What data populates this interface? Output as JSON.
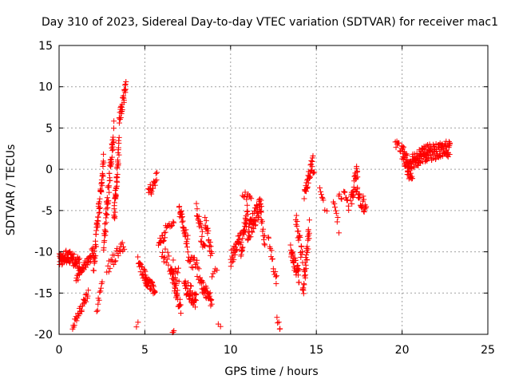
{
  "chart_data": {
    "type": "scatter",
    "title": "Day 310 of 2023, Sidereal Day-to-day VTEC variation (SDTVAR) for receiver mac1",
    "xlabel": "GPS time / hours",
    "ylabel": "SDTVAR / TECUs",
    "xlim": [
      0,
      25
    ],
    "ylim": [
      -20,
      15
    ],
    "xticks": [
      "0",
      "5",
      "10",
      "15",
      "20",
      "25"
    ],
    "yticks": [
      "-20",
      "-15",
      "-10",
      "-5",
      "0",
      "5",
      "10",
      "15"
    ],
    "grid": true,
    "marker": "+",
    "color": "#ff0000",
    "segments": [
      {
        "x0": 0.0,
        "x1": 0.5,
        "y0": -11.0,
        "y1": -10.5,
        "spread": 1.5,
        "n": 40
      },
      {
        "x0": 0.5,
        "x1": 1.2,
        "y0": -10.5,
        "y1": -11.5,
        "spread": 1.5,
        "n": 40
      },
      {
        "x0": 0.8,
        "x1": 1.7,
        "y0": -19.0,
        "y1": -15.0,
        "spread": 1.0,
        "n": 30
      },
      {
        "x0": 1.0,
        "x1": 2.0,
        "y0": -13.0,
        "y1": -10.0,
        "spread": 1.5,
        "n": 40
      },
      {
        "x0": 2.0,
        "x1": 2.6,
        "y0": -12.0,
        "y1": 1.0,
        "spread": 2.5,
        "n": 60
      },
      {
        "x0": 2.2,
        "x1": 2.5,
        "y0": -17.0,
        "y1": -14.0,
        "spread": 1.0,
        "n": 10
      },
      {
        "x0": 2.6,
        "x1": 3.2,
        "y0": -9.0,
        "y1": 5.0,
        "spread": 2.5,
        "n": 60
      },
      {
        "x0": 3.2,
        "x1": 3.5,
        "y0": -6.0,
        "y1": 3.0,
        "spread": 2.5,
        "n": 40
      },
      {
        "x0": 3.5,
        "x1": 3.9,
        "y0": 6.0,
        "y1": 10.0,
        "spread": 1.5,
        "n": 30
      },
      {
        "x0": 2.8,
        "x1": 3.8,
        "y0": -12.0,
        "y1": -9.0,
        "spread": 1.5,
        "n": 25
      },
      {
        "x0": 4.5,
        "x1": 4.6,
        "y0": -19.0,
        "y1": -18.5,
        "spread": 0.3,
        "n": 2
      },
      {
        "x0": 4.6,
        "x1": 5.2,
        "y0": -11.0,
        "y1": -14.0,
        "spread": 1.5,
        "n": 25
      },
      {
        "x0": 5.0,
        "x1": 5.6,
        "y0": -13.0,
        "y1": -15.0,
        "spread": 1.5,
        "n": 30
      },
      {
        "x0": 5.2,
        "x1": 5.7,
        "y0": -3.0,
        "y1": -1.0,
        "spread": 1.5,
        "n": 20
      },
      {
        "x0": 5.8,
        "x1": 6.2,
        "y0": -9.0,
        "y1": -8.0,
        "spread": 1.0,
        "n": 15
      },
      {
        "x0": 6.2,
        "x1": 6.7,
        "y0": -7.0,
        "y1": -6.5,
        "spread": 0.5,
        "n": 10
      },
      {
        "x0": 6.0,
        "x1": 7.0,
        "y0": -10.0,
        "y1": -13.0,
        "spread": 2.0,
        "n": 25
      },
      {
        "x0": 6.5,
        "x1": 7.1,
        "y0": -12.0,
        "y1": -17.0,
        "spread": 2.0,
        "n": 35
      },
      {
        "x0": 6.6,
        "x1": 6.7,
        "y0": -19.8,
        "y1": -19.5,
        "spread": 0.3,
        "n": 3
      },
      {
        "x0": 7.0,
        "x1": 7.5,
        "y0": -5.0,
        "y1": -9.0,
        "spread": 2.0,
        "n": 30
      },
      {
        "x0": 7.3,
        "x1": 8.0,
        "y0": -14.0,
        "y1": -16.0,
        "spread": 2.0,
        "n": 40
      },
      {
        "x0": 7.5,
        "x1": 8.3,
        "y0": -10.0,
        "y1": -13.0,
        "spread": 2.0,
        "n": 25
      },
      {
        "x0": 8.0,
        "x1": 8.5,
        "y0": -5.0,
        "y1": -10.0,
        "spread": 2.0,
        "n": 25
      },
      {
        "x0": 8.3,
        "x1": 8.9,
        "y0": -14.0,
        "y1": -16.0,
        "spread": 1.5,
        "n": 30
      },
      {
        "x0": 8.5,
        "x1": 8.9,
        "y0": -6.0,
        "y1": -10.5,
        "spread": 1.5,
        "n": 20
      },
      {
        "x0": 8.9,
        "x1": 9.2,
        "y0": -13.0,
        "y1": -12.0,
        "spread": 1.0,
        "n": 5
      },
      {
        "x0": 9.3,
        "x1": 9.4,
        "y0": -19.0,
        "y1": -19.0,
        "spread": 0.5,
        "n": 2
      },
      {
        "x0": 10.0,
        "x1": 10.6,
        "y0": -11.0,
        "y1": -8.0,
        "spread": 2.0,
        "n": 30
      },
      {
        "x0": 10.6,
        "x1": 11.0,
        "y0": -10.0,
        "y1": -5.0,
        "spread": 2.0,
        "n": 30
      },
      {
        "x0": 10.7,
        "x1": 11.2,
        "y0": -3.0,
        "y1": -3.5,
        "spread": 1.0,
        "n": 10
      },
      {
        "x0": 11.0,
        "x1": 11.8,
        "y0": -8.0,
        "y1": -4.0,
        "spread": 2.5,
        "n": 60
      },
      {
        "x0": 11.8,
        "x1": 12.0,
        "y0": -6.0,
        "y1": -9.0,
        "spread": 1.5,
        "n": 10
      },
      {
        "x0": 12.2,
        "x1": 12.7,
        "y0": -8.5,
        "y1": -13.5,
        "spread": 1.5,
        "n": 15
      },
      {
        "x0": 12.7,
        "x1": 12.9,
        "y0": -18.0,
        "y1": -19.5,
        "spread": 0.5,
        "n": 5
      },
      {
        "x0": 13.5,
        "x1": 14.0,
        "y0": -10.0,
        "y1": -13.0,
        "spread": 2.0,
        "n": 35
      },
      {
        "x0": 13.8,
        "x1": 14.2,
        "y0": -6.0,
        "y1": -11.0,
        "spread": 2.0,
        "n": 20
      },
      {
        "x0": 14.2,
        "x1": 14.6,
        "y0": -15.0,
        "y1": -7.0,
        "spread": 2.5,
        "n": 35
      },
      {
        "x0": 14.3,
        "x1": 14.8,
        "y0": -3.0,
        "y1": 1.0,
        "spread": 1.5,
        "n": 30
      },
      {
        "x0": 14.8,
        "x1": 14.9,
        "y0": -0.5,
        "y1": -0.5,
        "spread": 0.5,
        "n": 3
      },
      {
        "x0": 15.2,
        "x1": 15.4,
        "y0": -2.5,
        "y1": -3.5,
        "spread": 0.8,
        "n": 6
      },
      {
        "x0": 15.5,
        "x1": 15.6,
        "y0": -5.0,
        "y1": -5.0,
        "spread": 0.5,
        "n": 2
      },
      {
        "x0": 16.0,
        "x1": 16.3,
        "y0": -4.0,
        "y1": -7.0,
        "spread": 1.5,
        "n": 8
      },
      {
        "x0": 16.3,
        "x1": 16.5,
        "y0": -3.0,
        "y1": -3.5,
        "spread": 0.5,
        "n": 4
      },
      {
        "x0": 16.6,
        "x1": 16.9,
        "y0": -2.5,
        "y1": -4.5,
        "spread": 1.0,
        "n": 10
      },
      {
        "x0": 17.0,
        "x1": 17.4,
        "y0": -4.0,
        "y1": 0.0,
        "spread": 2.0,
        "n": 25
      },
      {
        "x0": 17.3,
        "x1": 17.9,
        "y0": -2.0,
        "y1": -5.0,
        "spread": 2.0,
        "n": 25
      },
      {
        "x0": 19.6,
        "x1": 20.0,
        "y0": 3.0,
        "y1": 2.5,
        "spread": 1.0,
        "n": 10
      },
      {
        "x0": 20.0,
        "x1": 20.5,
        "y0": 2.0,
        "y1": 0.0,
        "spread": 2.0,
        "n": 40
      },
      {
        "x0": 20.3,
        "x1": 20.6,
        "y0": -0.5,
        "y1": -1.0,
        "spread": 1.0,
        "n": 10
      },
      {
        "x0": 20.5,
        "x1": 21.5,
        "y0": 1.0,
        "y1": 2.0,
        "spread": 2.0,
        "n": 70
      },
      {
        "x0": 21.5,
        "x1": 22.8,
        "y0": 2.0,
        "y1": 2.5,
        "spread": 2.0,
        "n": 80
      }
    ]
  }
}
